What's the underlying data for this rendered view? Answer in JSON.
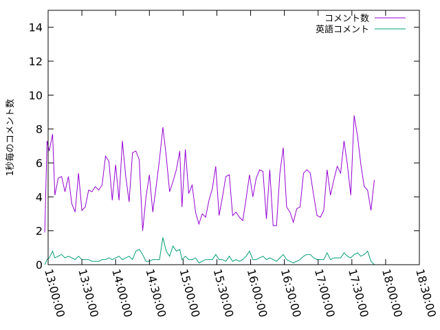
{
  "chart_data": {
    "type": "line",
    "title": "",
    "xlabel": "",
    "ylabel": "1秒毎のコメント数",
    "ylim": [
      0,
      15
    ],
    "yticks": [
      0,
      2,
      4,
      6,
      8,
      10,
      12,
      14
    ],
    "xlim": [
      "13:00:00",
      "18:30:00"
    ],
    "xticks": [
      "13:00:00",
      "13:30:00",
      "14:00:00",
      "14:30:00",
      "15:00:00",
      "15:30:00",
      "16:00:00",
      "16:30:00",
      "17:00:00",
      "17:30:00",
      "18:00:00",
      "18:30:00"
    ],
    "grid": false,
    "legend_position": "top-right",
    "series": [
      {
        "name": "コメント数",
        "color": "#9400d3",
        "points": [
          [
            "12:57:00",
            1.9
          ],
          [
            "12:59:00",
            7.3
          ],
          [
            "13:01:00",
            6.7
          ],
          [
            "13:04:00",
            7.7
          ],
          [
            "13:06:00",
            4.1
          ],
          [
            "13:09:00",
            5.1
          ],
          [
            "13:12:00",
            5.2
          ],
          [
            "13:15:00",
            4.3
          ],
          [
            "13:18:00",
            5.2
          ],
          [
            "13:21:00",
            3.6
          ],
          [
            "13:24:00",
            3.1
          ],
          [
            "13:27:00",
            5.4
          ],
          [
            "13:30:00",
            3.2
          ],
          [
            "13:33:00",
            3.4
          ],
          [
            "13:36:00",
            4.4
          ],
          [
            "13:39:00",
            4.3
          ],
          [
            "13:42:00",
            4.6
          ],
          [
            "13:45:00",
            4.4
          ],
          [
            "13:48:00",
            4.7
          ],
          [
            "13:51:00",
            6.4
          ],
          [
            "13:54:00",
            6.1
          ],
          [
            "13:57:00",
            3.8
          ],
          [
            "14:00:00",
            5.9
          ],
          [
            "14:03:00",
            3.8
          ],
          [
            "14:06:00",
            7.3
          ],
          [
            "14:09:00",
            5.2
          ],
          [
            "14:12:00",
            3.7
          ],
          [
            "14:15:00",
            6.6
          ],
          [
            "14:18:00",
            6.7
          ],
          [
            "14:21:00",
            6.2
          ],
          [
            "14:24:00",
            2.0
          ],
          [
            "14:27:00",
            4.0
          ],
          [
            "14:30:00",
            5.3
          ],
          [
            "14:33:00",
            3.1
          ],
          [
            "14:36:00",
            4.6
          ],
          [
            "14:39:00",
            6.2
          ],
          [
            "14:42:00",
            8.1
          ],
          [
            "14:45:00",
            6.4
          ],
          [
            "14:48:00",
            4.3
          ],
          [
            "14:51:00",
            4.9
          ],
          [
            "14:54:00",
            5.6
          ],
          [
            "14:57:00",
            6.7
          ],
          [
            "14:59:00",
            3.4
          ],
          [
            "15:02:00",
            6.8
          ],
          [
            "15:05:00",
            4.2
          ],
          [
            "15:08:00",
            4.7
          ],
          [
            "15:11:00",
            3.1
          ],
          [
            "15:14:00",
            2.4
          ],
          [
            "15:17:00",
            3.0
          ],
          [
            "15:20:00",
            2.8
          ],
          [
            "15:23:00",
            3.8
          ],
          [
            "15:26:00",
            4.5
          ],
          [
            "15:29:00",
            5.8
          ],
          [
            "15:32:00",
            2.9
          ],
          [
            "15:35:00",
            4.0
          ],
          [
            "15:38:00",
            5.2
          ],
          [
            "15:41:00",
            5.3
          ],
          [
            "15:44:00",
            2.9
          ],
          [
            "15:47:00",
            3.1
          ],
          [
            "15:50:00",
            2.8
          ],
          [
            "15:53:00",
            2.6
          ],
          [
            "15:56:00",
            3.9
          ],
          [
            "15:59:00",
            5.3
          ],
          [
            "16:02:00",
            4.0
          ],
          [
            "16:05:00",
            5.1
          ],
          [
            "16:08:00",
            5.6
          ],
          [
            "16:11:00",
            5.5
          ],
          [
            "16:14:00",
            2.7
          ],
          [
            "16:17:00",
            5.6
          ],
          [
            "16:20:00",
            2.3
          ],
          [
            "16:23:00",
            2.3
          ],
          [
            "16:26:00",
            5.4
          ],
          [
            "16:29:00",
            6.9
          ],
          [
            "16:32:00",
            3.4
          ],
          [
            "16:35:00",
            3.1
          ],
          [
            "16:38:00",
            2.5
          ],
          [
            "16:41:00",
            3.3
          ],
          [
            "16:44:00",
            3.4
          ],
          [
            "16:47:00",
            5.4
          ],
          [
            "16:50:00",
            5.6
          ],
          [
            "16:53:00",
            5.4
          ],
          [
            "16:56:00",
            4.1
          ],
          [
            "16:59:00",
            2.9
          ],
          [
            "17:02:00",
            2.8
          ],
          [
            "17:05:00",
            3.2
          ],
          [
            "17:08:00",
            5.6
          ],
          [
            "17:11:00",
            4.1
          ],
          [
            "17:14:00",
            5.0
          ],
          [
            "17:17:00",
            5.8
          ],
          [
            "17:20:00",
            5.4
          ],
          [
            "17:23:00",
            7.3
          ],
          [
            "17:26:00",
            5.9
          ],
          [
            "17:29:00",
            4.1
          ],
          [
            "17:32:00",
            8.8
          ],
          [
            "17:35:00",
            7.6
          ],
          [
            "17:38:00",
            5.9
          ],
          [
            "17:41:00",
            4.6
          ],
          [
            "17:44:00",
            4.4
          ],
          [
            "17:47:00",
            3.2
          ],
          [
            "17:50:00",
            5.0
          ]
        ]
      },
      {
        "name": "英語コメント",
        "color": "#009e73",
        "points": [
          [
            "12:57:00",
            0.0
          ],
          [
            "12:59:00",
            0.3
          ],
          [
            "13:01:00",
            0.4
          ],
          [
            "13:04:00",
            0.8
          ],
          [
            "13:06:00",
            0.4
          ],
          [
            "13:09:00",
            0.5
          ],
          [
            "13:12:00",
            0.6
          ],
          [
            "13:15:00",
            0.4
          ],
          [
            "13:18:00",
            0.5
          ],
          [
            "13:21:00",
            0.4
          ],
          [
            "13:24:00",
            0.3
          ],
          [
            "13:27:00",
            0.5
          ],
          [
            "13:30:00",
            0.3
          ],
          [
            "13:33:00",
            0.3
          ],
          [
            "13:36:00",
            0.3
          ],
          [
            "13:39:00",
            0.2
          ],
          [
            "13:42:00",
            0.2
          ],
          [
            "13:45:00",
            0.2
          ],
          [
            "13:48:00",
            0.3
          ],
          [
            "13:51:00",
            0.3
          ],
          [
            "13:54:00",
            0.4
          ],
          [
            "13:57:00",
            0.3
          ],
          [
            "14:00:00",
            0.4
          ],
          [
            "14:03:00",
            0.5
          ],
          [
            "14:06:00",
            0.3
          ],
          [
            "14:09:00",
            0.4
          ],
          [
            "14:12:00",
            0.5
          ],
          [
            "14:15:00",
            0.3
          ],
          [
            "14:18:00",
            0.8
          ],
          [
            "14:21:00",
            0.9
          ],
          [
            "14:24:00",
            0.6
          ],
          [
            "14:27:00",
            0.2
          ],
          [
            "14:30:00",
            0.2
          ],
          [
            "14:33:00",
            0.3
          ],
          [
            "14:36:00",
            0.3
          ],
          [
            "14:39:00",
            0.3
          ],
          [
            "14:42:00",
            1.6
          ],
          [
            "14:45:00",
            0.8
          ],
          [
            "14:48:00",
            0.5
          ],
          [
            "14:51:00",
            1.1
          ],
          [
            "14:54:00",
            0.8
          ],
          [
            "14:57:00",
            0.9
          ],
          [
            "14:59:00",
            0.3
          ],
          [
            "15:02:00",
            0.5
          ],
          [
            "15:05:00",
            0.3
          ],
          [
            "15:08:00",
            0.3
          ],
          [
            "15:11:00",
            0.4
          ],
          [
            "15:14:00",
            0.1
          ],
          [
            "15:17:00",
            0.2
          ],
          [
            "15:20:00",
            0.3
          ],
          [
            "15:23:00",
            0.3
          ],
          [
            "15:26:00",
            0.3
          ],
          [
            "15:29:00",
            0.6
          ],
          [
            "15:32:00",
            0.3
          ],
          [
            "15:35:00",
            0.3
          ],
          [
            "15:38:00",
            0.2
          ],
          [
            "15:41:00",
            0.5
          ],
          [
            "15:44:00",
            0.2
          ],
          [
            "15:47:00",
            0.3
          ],
          [
            "15:50:00",
            0.2
          ],
          [
            "15:53:00",
            0.3
          ],
          [
            "15:56:00",
            0.5
          ],
          [
            "15:59:00",
            0.8
          ],
          [
            "16:02:00",
            0.3
          ],
          [
            "16:05:00",
            0.3
          ],
          [
            "16:08:00",
            0.4
          ],
          [
            "16:11:00",
            0.5
          ],
          [
            "16:14:00",
            0.3
          ],
          [
            "16:17:00",
            0.4
          ],
          [
            "16:20:00",
            0.3
          ],
          [
            "16:23:00",
            0.2
          ],
          [
            "16:26:00",
            0.4
          ],
          [
            "16:29:00",
            0.6
          ],
          [
            "16:32:00",
            0.3
          ],
          [
            "16:35:00",
            0.2
          ],
          [
            "16:38:00",
            0.1
          ],
          [
            "16:41:00",
            0.2
          ],
          [
            "16:44:00",
            0.3
          ],
          [
            "16:47:00",
            0.5
          ],
          [
            "16:50:00",
            0.6
          ],
          [
            "16:53:00",
            0.6
          ],
          [
            "16:56:00",
            0.4
          ],
          [
            "16:59:00",
            0.3
          ],
          [
            "17:02:00",
            0.3
          ],
          [
            "17:05:00",
            0.3
          ],
          [
            "17:08:00",
            0.7
          ],
          [
            "17:11:00",
            0.3
          ],
          [
            "17:14:00",
            0.4
          ],
          [
            "17:17:00",
            0.4
          ],
          [
            "17:20:00",
            0.4
          ],
          [
            "17:23:00",
            0.7
          ],
          [
            "17:26:00",
            0.5
          ],
          [
            "17:29:00",
            0.4
          ],
          [
            "17:32:00",
            0.6
          ],
          [
            "17:35:00",
            0.7
          ],
          [
            "17:38:00",
            0.5
          ],
          [
            "17:41:00",
            0.6
          ],
          [
            "17:44:00",
            0.8
          ],
          [
            "17:47:00",
            0.2
          ],
          [
            "17:50:00",
            0.0
          ]
        ]
      }
    ]
  }
}
